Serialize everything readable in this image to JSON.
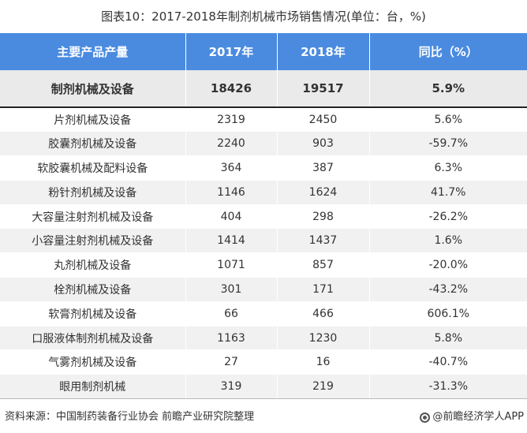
{
  "title": "图表10：2017-2018年制剂机械市场销售情况(单位：台，%)",
  "table": {
    "headers": [
      "主要产品产量",
      "2017年",
      "2018年",
      "同比（%）"
    ],
    "summary": [
      "制剂机械及设备",
      "18426",
      "19517",
      "5.9%"
    ],
    "rows": [
      [
        "片剂机械及设备",
        "2319",
        "2450",
        "5.6%"
      ],
      [
        "胶囊剂机械及设备",
        "2240",
        "903",
        "-59.7%"
      ],
      [
        "软胶囊机械及配料设备",
        "364",
        "387",
        "6.3%"
      ],
      [
        "粉针剂机械及设备",
        "1146",
        "1624",
        "41.7%"
      ],
      [
        "大容量注射剂机械及设备",
        "404",
        "298",
        "-26.2%"
      ],
      [
        "小容量注射剂机械及设备",
        "1414",
        "1437",
        "1.6%"
      ],
      [
        "丸剂机械及设备",
        "1071",
        "857",
        "-20.0%"
      ],
      [
        "栓剂机械及设备",
        "301",
        "171",
        "-43.2%"
      ],
      [
        "软膏剂机械及设备",
        "66",
        "466",
        "606.1%"
      ],
      [
        "口服液体制剂机械及设备",
        "1163",
        "1230",
        "5.8%"
      ],
      [
        "气雾剂机械及设备",
        "27",
        "16",
        "-40.7%"
      ],
      [
        "眼用制剂机械",
        "319",
        "219",
        "-31.3%"
      ]
    ]
  },
  "footer": {
    "source": "资料来源：中国制药装备行业协会 前瞻产业研究院整理",
    "brand": "@前瞻经济学人APP",
    "brand_icon": "brand-logo-icon"
  }
}
